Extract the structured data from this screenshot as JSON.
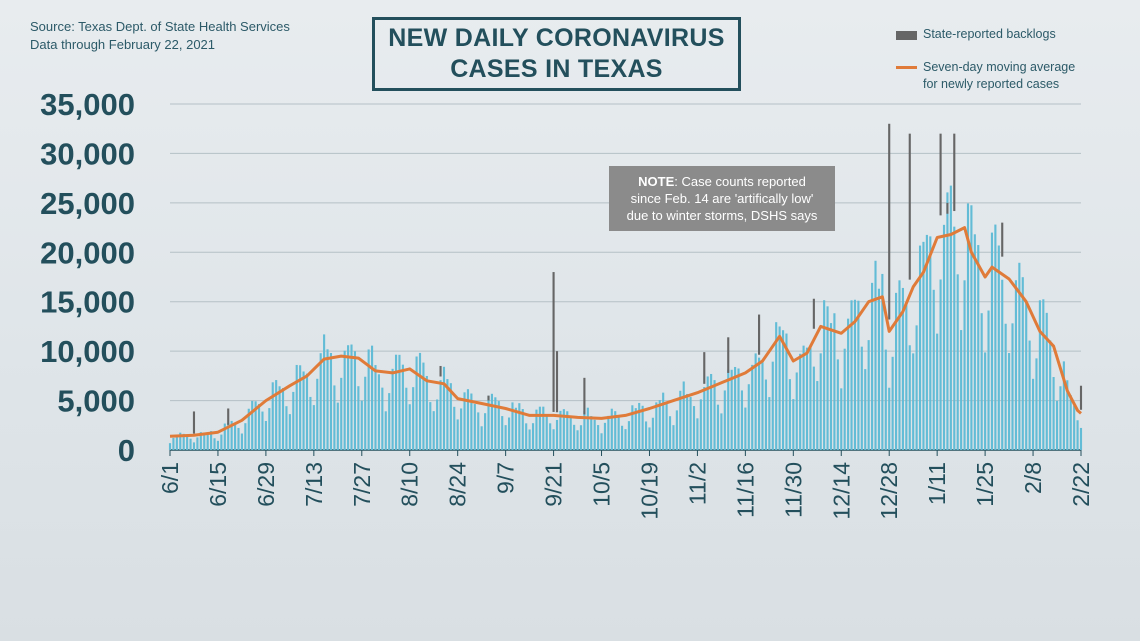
{
  "header": {
    "source": "Source: Texas Dept. of State Health Services",
    "data_through": "Data through  February  22, 2021",
    "title_line1": "NEW DAILY CORONAVIRUS",
    "title_line2": "CASES IN TEXAS"
  },
  "legend": {
    "backlog_label": "State-reported backlogs",
    "avg_label_line1": "Seven-day moving average",
    "avg_label_line2": "for newly reported cases"
  },
  "note": {
    "bold": "NOTE",
    "line1_rest": ": Case counts reported",
    "line2": "since Feb. 14 are 'artifically low'",
    "line3": "due to winter storms, DSHS  says"
  },
  "colors": {
    "bars": "#62bcd6",
    "backlog": "#666666",
    "average": "#e07b39",
    "text": "#234f5c"
  },
  "chart_data": {
    "type": "bar",
    "title": "NEW DAILY CORONAVIRUS CASES IN TEXAS",
    "ylim": [
      0,
      35000
    ],
    "y_ticks": [
      "35,000",
      "30,000",
      "25,000",
      "20,000",
      "15,000",
      "10,000",
      "5,000",
      "0"
    ],
    "y_tick_values": [
      35000,
      30000,
      25000,
      20000,
      15000,
      10000,
      5000,
      0
    ],
    "x_tick_labels": [
      "6/1",
      "6/15",
      "6/29",
      "7/13",
      "7/27",
      "8/10",
      "8/24",
      "9/7",
      "9/21",
      "10/5",
      "10/19",
      "11/2",
      "11/16",
      "11/30",
      "12/14",
      "12/28",
      "1/11",
      "1/25",
      "2/8",
      "2/22"
    ],
    "x_tick_day_index": [
      0,
      14,
      28,
      42,
      56,
      70,
      84,
      98,
      112,
      126,
      140,
      154,
      168,
      182,
      196,
      210,
      224,
      238,
      252,
      266
    ],
    "num_days": 267,
    "series": [
      {
        "name": "Seven-day moving average for newly reported cases",
        "kind": "line",
        "points": [
          [
            0,
            1400
          ],
          [
            7,
            1500
          ],
          [
            14,
            1800
          ],
          [
            21,
            3000
          ],
          [
            28,
            5000
          ],
          [
            35,
            6500
          ],
          [
            40,
            7500
          ],
          [
            45,
            9200
          ],
          [
            50,
            9500
          ],
          [
            55,
            9300
          ],
          [
            60,
            8000
          ],
          [
            65,
            7800
          ],
          [
            70,
            8200
          ],
          [
            75,
            7000
          ],
          [
            80,
            6700
          ],
          [
            84,
            5200
          ],
          [
            91,
            4700
          ],
          [
            98,
            4200
          ],
          [
            105,
            3500
          ],
          [
            112,
            3500
          ],
          [
            119,
            3300
          ],
          [
            126,
            3200
          ],
          [
            133,
            3500
          ],
          [
            140,
            4200
          ],
          [
            147,
            5000
          ],
          [
            154,
            5800
          ],
          [
            161,
            6800
          ],
          [
            168,
            7800
          ],
          [
            173,
            9000
          ],
          [
            178,
            11500
          ],
          [
            182,
            9000
          ],
          [
            186,
            9800
          ],
          [
            190,
            12500
          ],
          [
            196,
            11800
          ],
          [
            200,
            13000
          ],
          [
            204,
            15000
          ],
          [
            208,
            15500
          ],
          [
            210,
            12000
          ],
          [
            214,
            14000
          ],
          [
            217,
            16500
          ],
          [
            220,
            18000
          ],
          [
            224,
            21500
          ],
          [
            228,
            21800
          ],
          [
            232,
            22500
          ],
          [
            234,
            20000
          ],
          [
            238,
            17500
          ],
          [
            240,
            18500
          ],
          [
            245,
            17300
          ],
          [
            250,
            15000
          ],
          [
            254,
            12000
          ],
          [
            258,
            10500
          ],
          [
            262,
            6000
          ],
          [
            265,
            4000
          ],
          [
            266,
            3700
          ]
        ]
      },
      {
        "name": "State-reported backlogs",
        "kind": "bar-overlay",
        "spikes": [
          [
            7,
            3900
          ],
          [
            17,
            4200
          ],
          [
            79,
            8500
          ],
          [
            93,
            5500
          ],
          [
            112,
            18000
          ],
          [
            113,
            10000
          ],
          [
            121,
            7300
          ],
          [
            156,
            9900
          ],
          [
            163,
            11400
          ],
          [
            172,
            13700
          ],
          [
            188,
            15300
          ],
          [
            209,
            9800
          ],
          [
            210,
            33000
          ],
          [
            216,
            32000
          ],
          [
            225,
            32000
          ],
          [
            227,
            25000
          ],
          [
            229,
            32000
          ],
          [
            243,
            23000
          ],
          [
            266,
            6500
          ]
        ]
      },
      {
        "name": "Daily new cases",
        "kind": "bar",
        "description": "daily bars fluctuate around the moving average; weekend dips and weekday peaks"
      }
    ]
  }
}
